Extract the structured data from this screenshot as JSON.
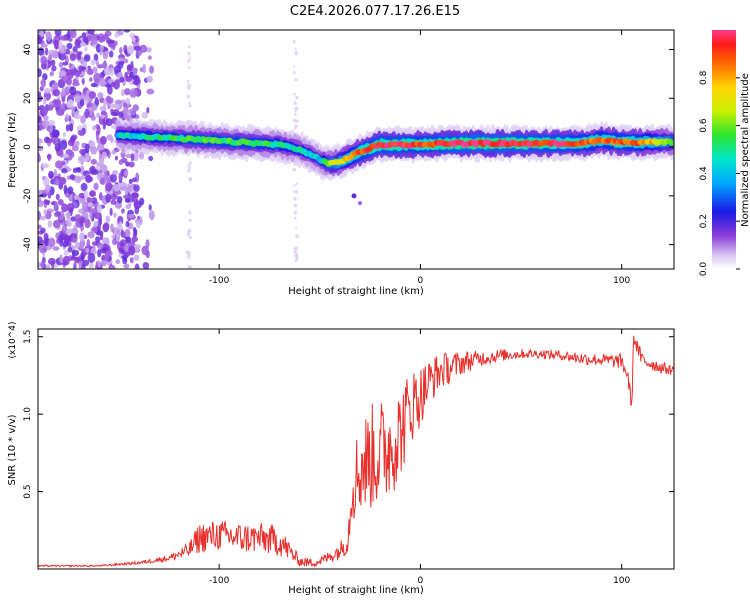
{
  "title": "C2E4.2026.077.17.26.E15",
  "colors": {
    "snr_line": "#e8302c",
    "axis": "#000000",
    "background": "#ffffff"
  },
  "chart_data": [
    {
      "type": "heatmap",
      "name": "spectrogram",
      "xlabel": "Height of straight line (km)",
      "ylabel": "Frequency (Hz)",
      "xlim": [
        -190,
        126
      ],
      "ylim": [
        -50,
        48
      ],
      "x_ticks": [
        -100,
        0,
        100
      ],
      "y_ticks": [
        -40,
        -20,
        0,
        20,
        40
      ],
      "colorbar": {
        "label": "Normalized spectral amplitude",
        "range": [
          0.0,
          1.0
        ],
        "ticks": [
          0.0,
          0.2,
          0.4,
          0.6,
          0.8
        ]
      },
      "ridge": {
        "description": "dominant frequency band vs height",
        "x": [
          -150,
          -130,
          -110,
          -90,
          -70,
          -60,
          -50,
          -45,
          -40,
          -30,
          -20,
          -10,
          0,
          10,
          20,
          40,
          60,
          80,
          90,
          100,
          110,
          126
        ],
        "y": [
          5,
          4,
          3,
          2,
          1,
          -1,
          -5,
          -7,
          -6,
          -2,
          1,
          1,
          1,
          1.5,
          1.5,
          1.5,
          1.5,
          1.5,
          3,
          2,
          2,
          2
        ],
        "amplitude": [
          0.45,
          0.5,
          0.55,
          0.55,
          0.5,
          0.45,
          0.4,
          0.6,
          0.7,
          0.9,
          0.95,
          0.95,
          0.9,
          0.95,
          1.0,
          1.0,
          0.95,
          0.9,
          0.85,
          0.9,
          0.85,
          0.6
        ]
      },
      "noise_region": {
        "x": [
          -190,
          -140
        ],
        "y": [
          -50,
          48
        ],
        "amplitude": 0.05
      }
    },
    {
      "type": "line",
      "name": "snr",
      "xlabel": "Height of straight line (km)",
      "ylabel": "SNR (10 * v/v)",
      "y_multiplier": "(x10^4)",
      "xlim": [
        -190,
        126
      ],
      "ylim": [
        0,
        1.55
      ],
      "x_ticks": [
        -100,
        0,
        100
      ],
      "y_ticks": [
        0.5,
        1.0,
        1.5
      ],
      "series": [
        {
          "name": "SNR",
          "x": [
            -190,
            -160,
            -140,
            -125,
            -115,
            -110,
            -100,
            -90,
            -80,
            -70,
            -60,
            -55,
            -50,
            -45,
            -40,
            -36,
            -34,
            -30,
            -25,
            -20,
            -15,
            -10,
            -5,
            0,
            5,
            10,
            15,
            20,
            30,
            40,
            50,
            60,
            70,
            80,
            90,
            100,
            103,
            105,
            106,
            110,
            120,
            126
          ],
          "y": [
            0.02,
            0.02,
            0.04,
            0.07,
            0.12,
            0.2,
            0.22,
            0.2,
            0.2,
            0.18,
            0.05,
            0.04,
            0.05,
            0.08,
            0.12,
            0.18,
            0.55,
            0.65,
            0.72,
            0.75,
            0.8,
            0.88,
            1.05,
            1.12,
            1.22,
            1.28,
            1.3,
            1.33,
            1.36,
            1.38,
            1.39,
            1.39,
            1.38,
            1.36,
            1.35,
            1.34,
            1.25,
            1.05,
            1.5,
            1.35,
            1.3,
            1.28
          ],
          "noise": [
            0.005,
            0.005,
            0.01,
            0.02,
            0.05,
            0.1,
            0.1,
            0.1,
            0.1,
            0.1,
            0.03,
            0.03,
            0.03,
            0.04,
            0.06,
            0.08,
            0.25,
            0.3,
            0.35,
            0.35,
            0.35,
            0.3,
            0.25,
            0.2,
            0.15,
            0.12,
            0.1,
            0.08,
            0.05,
            0.04,
            0.03,
            0.03,
            0.03,
            0.04,
            0.04,
            0.05,
            0.05,
            0.05,
            0.05,
            0.05,
            0.04,
            0.03
          ]
        }
      ]
    }
  ]
}
